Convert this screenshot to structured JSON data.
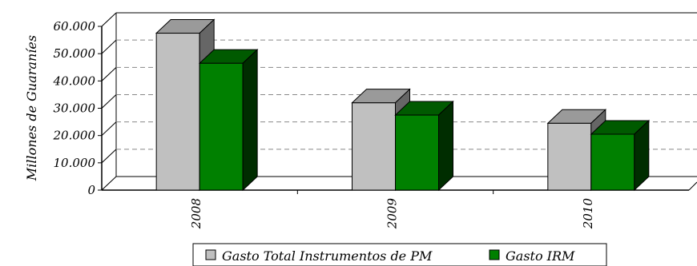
{
  "chart_data": {
    "type": "bar",
    "categories": [
      "2008",
      "2009",
      "2010"
    ],
    "series": [
      {
        "name": "Gasto Total Instrumentos de PM",
        "color": "#c0c0c0",
        "values": [
          57500,
          32000,
          24500
        ]
      },
      {
        "name": "Gasto IRM",
        "color": "#008000",
        "values": [
          46500,
          27500,
          20500
        ]
      }
    ],
    "ylabel": "Millones de Guaraníes",
    "xlabel": "",
    "ylim": [
      0,
      60000
    ],
    "yticks": [
      "0",
      "10.000",
      "20.000",
      "30.000",
      "40.000",
      "50.000",
      "60.000"
    ],
    "grid": true,
    "legend_position": "bottom",
    "chart_style": "3d-clustered-column"
  }
}
